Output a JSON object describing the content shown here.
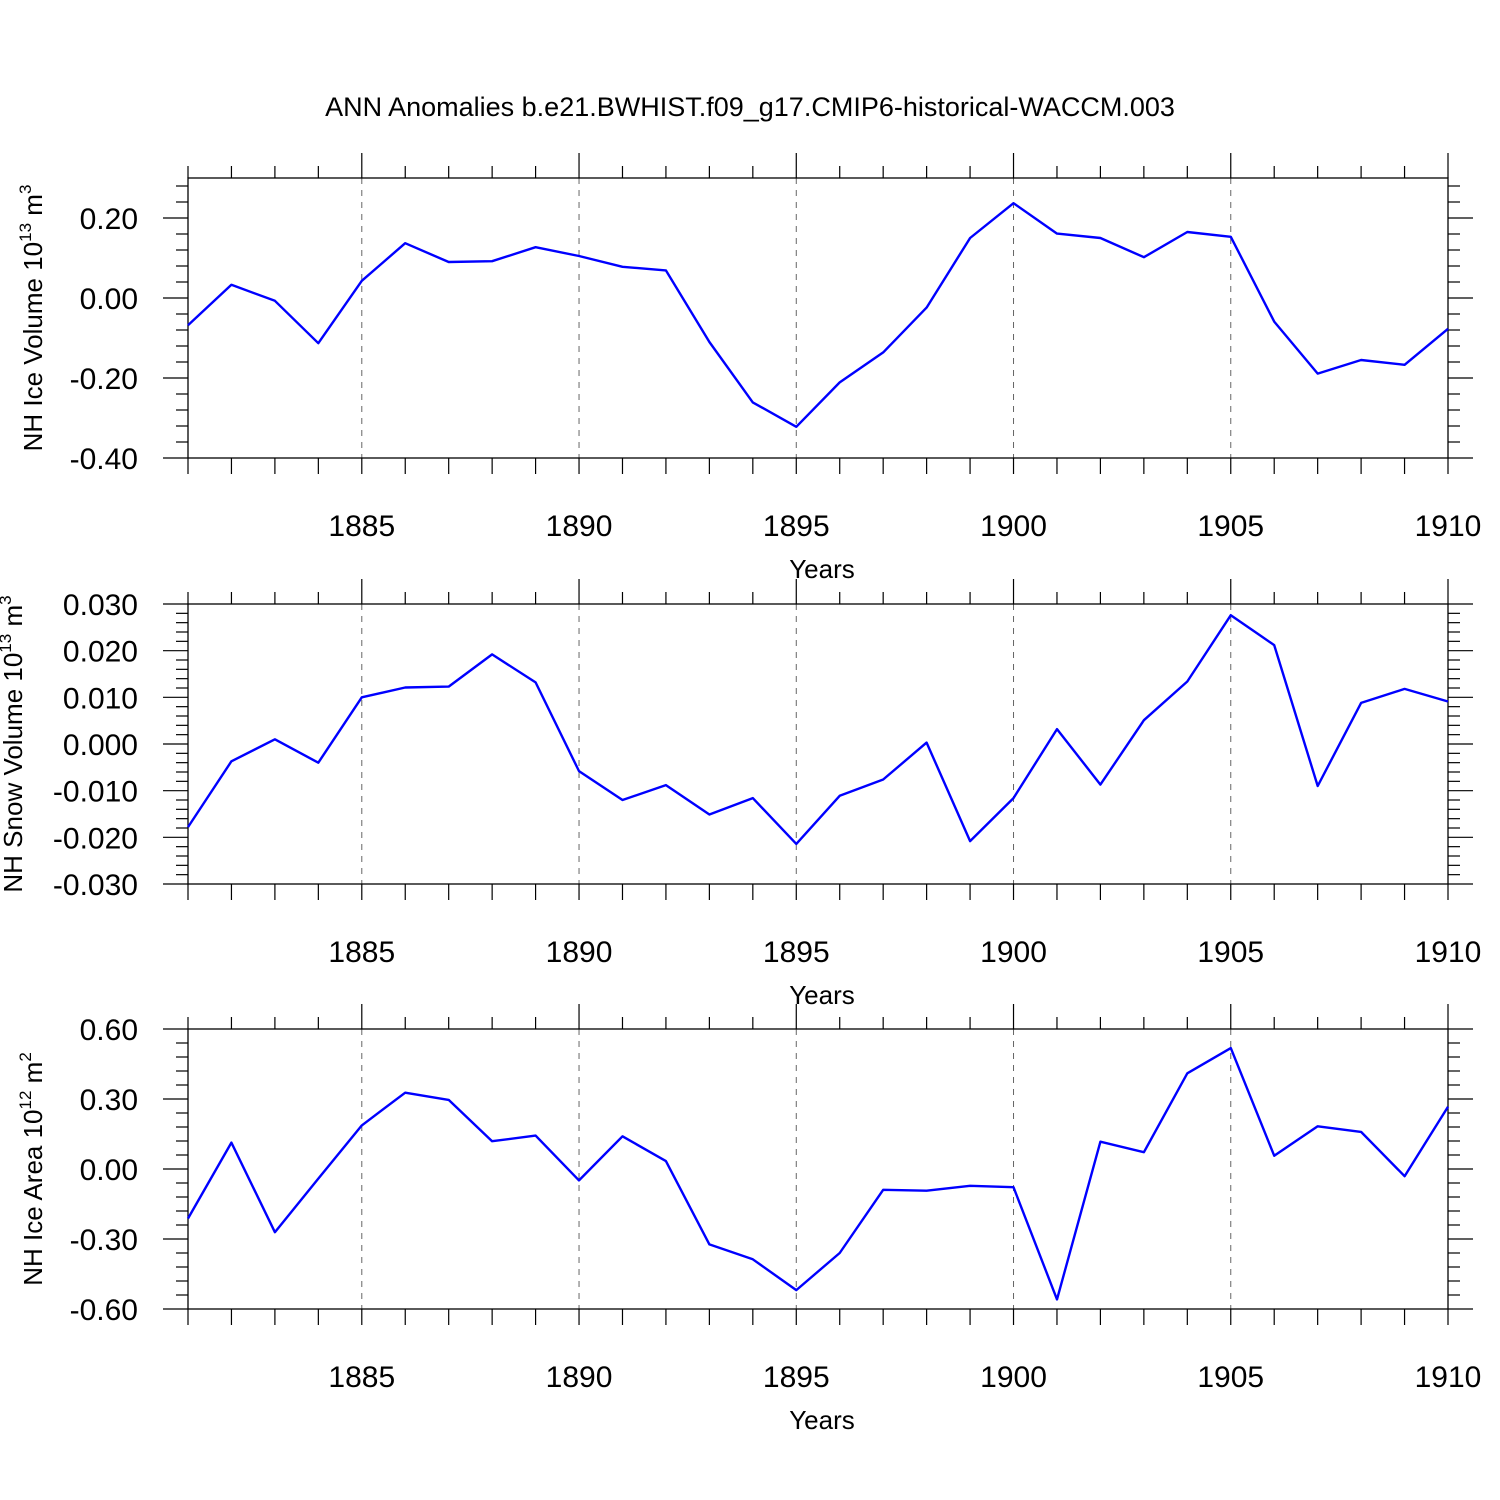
{
  "title": "ANN Anomalies b.e21.BWHIST.f09_g17.CMIP6-historical-WACCM.003",
  "line_color": "#0000ff",
  "chart_data": [
    {
      "type": "line",
      "xlabel": "Years",
      "ylabel_main": "NH Ice Volume 10",
      "ylabel_exp": "13",
      "ylabel_unit": " m",
      "ylabel_unit_exp": "3",
      "xlim": [
        1881,
        1910
      ],
      "ylim": [
        -0.4,
        0.3
      ],
      "xticks": [
        1885,
        1890,
        1895,
        1900,
        1905,
        1910
      ],
      "yticks": [
        -0.4,
        -0.2,
        0.0,
        0.2
      ],
      "ytick_labels": [
        "-0.40",
        "-0.20",
        "0.00",
        "0.20"
      ],
      "x": [
        1881,
        1882,
        1883,
        1884,
        1885,
        1886,
        1887,
        1888,
        1889,
        1890,
        1891,
        1892,
        1893,
        1894,
        1895,
        1896,
        1897,
        1898,
        1899,
        1900,
        1901,
        1902,
        1903,
        1904,
        1905,
        1906,
        1907,
        1908,
        1909,
        1910
      ],
      "values": [
        -0.068,
        0.033,
        -0.007,
        -0.113,
        0.043,
        0.137,
        0.09,
        0.092,
        0.127,
        0.105,
        0.078,
        0.069,
        -0.11,
        -0.261,
        -0.322,
        -0.211,
        -0.136,
        -0.024,
        0.15,
        0.237,
        0.161,
        0.15,
        0.102,
        0.165,
        0.153,
        -0.059,
        -0.189,
        -0.155,
        -0.167,
        -0.077
      ]
    },
    {
      "type": "line",
      "xlabel": "Years",
      "ylabel_main": "NH Snow Volume 10",
      "ylabel_exp": "13",
      "ylabel_unit": " m",
      "ylabel_unit_exp": "3",
      "xlim": [
        1881,
        1910
      ],
      "ylim": [
        -0.03,
        0.03
      ],
      "xticks": [
        1885,
        1890,
        1895,
        1900,
        1905,
        1910
      ],
      "yticks": [
        -0.03,
        -0.02,
        -0.01,
        0.0,
        0.01,
        0.02,
        0.03
      ],
      "ytick_labels": [
        "-0.030",
        "-0.020",
        "-0.010",
        "0.000",
        "0.010",
        "0.020",
        "0.030"
      ],
      "x": [
        1881,
        1882,
        1883,
        1884,
        1885,
        1886,
        1887,
        1888,
        1889,
        1890,
        1891,
        1892,
        1893,
        1894,
        1895,
        1896,
        1897,
        1898,
        1899,
        1900,
        1901,
        1902,
        1903,
        1904,
        1905,
        1906,
        1907,
        1908,
        1909,
        1910
      ],
      "values": [
        -0.0178,
        -0.0037,
        0.001,
        -0.004,
        0.01,
        0.0121,
        0.0123,
        0.0192,
        0.0132,
        -0.0058,
        -0.012,
        -0.0088,
        -0.0151,
        -0.0116,
        -0.0214,
        -0.0111,
        -0.0076,
        0.0003,
        -0.0208,
        -0.0116,
        0.0032,
        -0.0087,
        0.0051,
        0.0134,
        0.0276,
        0.0212,
        -0.009,
        0.0088,
        0.0118,
        0.0091
      ]
    },
    {
      "type": "line",
      "xlabel": "Years",
      "ylabel_main": "NH Ice Area 10",
      "ylabel_exp": "12",
      "ylabel_unit": " m",
      "ylabel_unit_exp": "2",
      "xlim": [
        1881,
        1910
      ],
      "ylim": [
        -0.6,
        0.6
      ],
      "xticks": [
        1885,
        1890,
        1895,
        1900,
        1905,
        1910
      ],
      "yticks": [
        -0.6,
        -0.3,
        0.0,
        0.3,
        0.6
      ],
      "ytick_labels": [
        "-0.60",
        "-0.30",
        "0.00",
        "0.30",
        "0.60"
      ],
      "x": [
        1881,
        1882,
        1883,
        1884,
        1885,
        1886,
        1887,
        1888,
        1889,
        1890,
        1891,
        1892,
        1893,
        1894,
        1895,
        1896,
        1897,
        1898,
        1899,
        1900,
        1901,
        1902,
        1903,
        1904,
        1905,
        1906,
        1907,
        1908,
        1909,
        1910
      ],
      "values": [
        -0.212,
        0.113,
        -0.271,
        -0.041,
        0.187,
        0.327,
        0.296,
        0.119,
        0.143,
        -0.049,
        0.14,
        0.034,
        -0.323,
        -0.387,
        -0.519,
        -0.36,
        -0.089,
        -0.093,
        -0.072,
        -0.078,
        -0.559,
        0.117,
        0.072,
        0.41,
        0.518,
        0.057,
        0.183,
        0.159,
        -0.031,
        0.267
      ]
    }
  ]
}
